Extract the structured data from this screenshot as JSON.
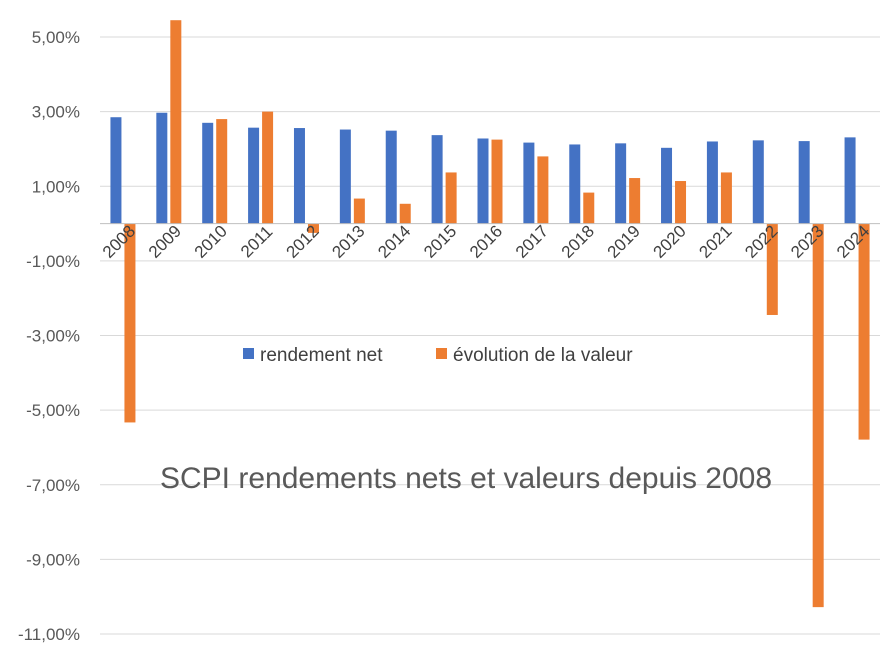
{
  "chart_data": {
    "type": "bar",
    "title": "SCPI rendements nets et valeurs depuis 2008",
    "categories": [
      "2008",
      "2009",
      "2010",
      "2011",
      "2012",
      "2013",
      "2014",
      "2015",
      "2016",
      "2017",
      "2018",
      "2019",
      "2020",
      "2021",
      "2022",
      "2023",
      "2024"
    ],
    "series": [
      {
        "name": "rendement net",
        "color": "#4472C4",
        "values": [
          2.85,
          2.97,
          2.7,
          2.57,
          2.56,
          2.52,
          2.49,
          2.37,
          2.28,
          2.17,
          2.12,
          2.15,
          2.03,
          2.2,
          2.23,
          2.21,
          2.31
        ]
      },
      {
        "name": "évolution de la valeur",
        "color": "#ED7D31",
        "values": [
          -5.33,
          5.45,
          2.8,
          3.0,
          -0.25,
          0.67,
          0.53,
          1.37,
          2.25,
          1.8,
          0.83,
          1.22,
          1.14,
          1.37,
          -2.45,
          -10.28,
          -5.79
        ]
      }
    ],
    "ylim": [
      -11,
      5
    ],
    "yticks": [
      "5,00%",
      "3,00%",
      "1,00%",
      "-1,00%",
      "-3,00%",
      "-5,00%",
      "-7,00%",
      "-9,00%",
      "-11,00%"
    ],
    "ytick_values": [
      5,
      3,
      1,
      -1,
      -3,
      -5,
      -7,
      -9,
      -11
    ],
    "grid": "horizontal",
    "legend_position": "inside-center",
    "xlabel": "",
    "ylabel": ""
  }
}
